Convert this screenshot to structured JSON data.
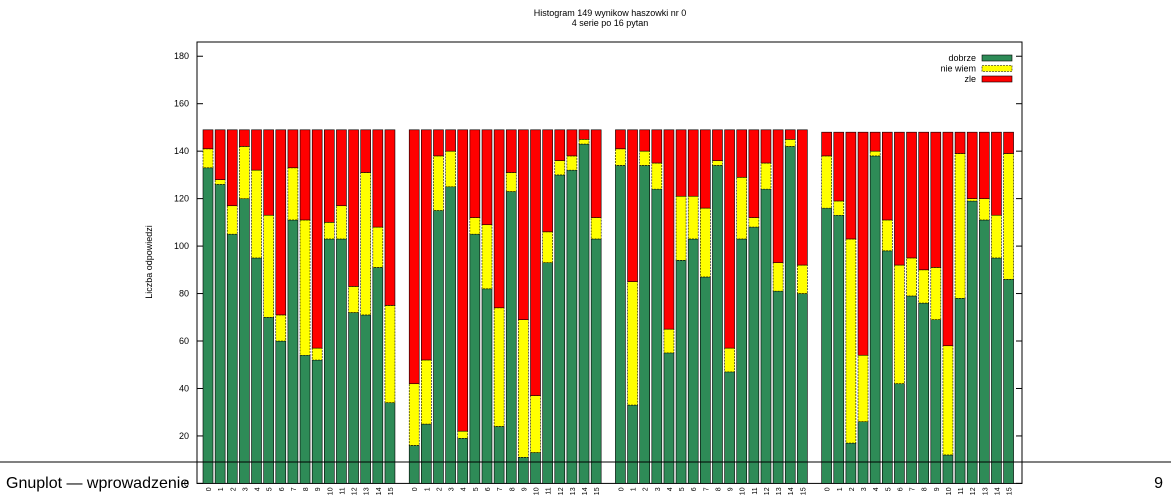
{
  "chart_data": {
    "type": "stacked-bar",
    "title": "Histogram 149 wynikow haszowki nr 0",
    "subtitle": "4 serie po 16 pytan",
    "y_label": "Liczba odpowiedzi",
    "categories": [
      "0",
      "1",
      "2",
      "3",
      "4",
      "5",
      "6",
      "7",
      "8",
      "9",
      "10",
      "11",
      "12",
      "13",
      "14",
      "15",
      "0",
      "1",
      "2",
      "3",
      "4",
      "5",
      "6",
      "7",
      "8",
      "9",
      "10",
      "11",
      "12",
      "13",
      "14",
      "15",
      "0",
      "1",
      "2",
      "3",
      "4",
      "5",
      "6",
      "7",
      "8",
      "9",
      "10",
      "11",
      "12",
      "13",
      "14",
      "15",
      "0",
      "1",
      "2",
      "3",
      "4",
      "5",
      "6",
      "7",
      "8",
      "9",
      "10",
      "11",
      "12",
      "13",
      "14",
      "15"
    ],
    "series": [
      {
        "name": "dobrze",
        "color": "#2e8b57",
        "values": [
          133,
          126,
          105,
          120,
          95,
          70,
          60,
          111,
          54,
          52,
          103,
          103,
          72,
          71,
          91,
          34,
          16,
          25,
          115,
          125,
          19,
          105,
          82,
          24,
          123,
          11,
          13,
          93,
          130,
          132,
          143,
          103,
          134,
          33,
          134,
          124,
          55,
          94,
          103,
          87,
          134,
          47,
          103,
          108,
          124,
          81,
          142,
          80,
          116,
          113,
          17,
          26,
          138,
          98,
          42,
          79,
          76,
          69,
          12,
          78,
          119,
          111,
          95,
          86
        ]
      },
      {
        "name": "nie wiem",
        "color": "#ffff00",
        "values": [
          8,
          2,
          12,
          22,
          37,
          43,
          11,
          22,
          57,
          5,
          7,
          14,
          11,
          60,
          17,
          41,
          26,
          27,
          23,
          15,
          3,
          7,
          27,
          50,
          8,
          58,
          24,
          13,
          6,
          6,
          2,
          9,
          7,
          52,
          6,
          11,
          10,
          27,
          18,
          29,
          2,
          10,
          26,
          4,
          11,
          12,
          3,
          12,
          22,
          6,
          86,
          28,
          2,
          13,
          50,
          16,
          14,
          22,
          46,
          61,
          1,
          9,
          18,
          53
        ]
      },
      {
        "name": "zle",
        "color": "#ff0000",
        "values": [
          8,
          21,
          32,
          7,
          17,
          36,
          78,
          16,
          38,
          92,
          39,
          32,
          66,
          18,
          41,
          74,
          107,
          97,
          11,
          9,
          127,
          37,
          40,
          75,
          18,
          80,
          112,
          43,
          13,
          11,
          4,
          37,
          8,
          64,
          9,
          14,
          84,
          28,
          28,
          33,
          13,
          92,
          20,
          37,
          14,
          56,
          4,
          57,
          10,
          29,
          45,
          94,
          8,
          37,
          56,
          53,
          58,
          57,
          90,
          9,
          28,
          28,
          35,
          9
        ]
      }
    ],
    "ylim": [
      0,
      186
    ],
    "yticks": [
      0,
      20,
      40,
      60,
      80,
      100,
      120,
      140,
      160,
      180
    ],
    "legend": "top-right"
  },
  "footer": {
    "title": "Gnuplot — wprowadzenie",
    "page": "9"
  }
}
